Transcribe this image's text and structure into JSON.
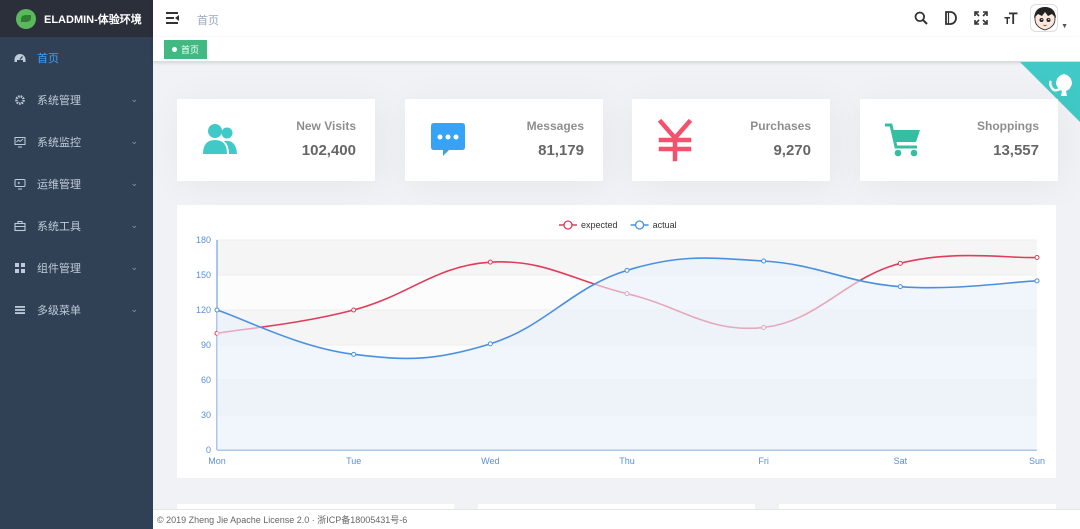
{
  "app": {
    "title": "ELADMIN-体验环境"
  },
  "sidebar": {
    "items": [
      {
        "label": "首页",
        "icon": "dashboard-icon",
        "active": true
      },
      {
        "label": "系统管理",
        "icon": "gear-icon"
      },
      {
        "label": "系统监控",
        "icon": "monitor-icon"
      },
      {
        "label": "运维管理",
        "icon": "ops-icon"
      },
      {
        "label": "系统工具",
        "icon": "tools-icon"
      },
      {
        "label": "组件管理",
        "icon": "components-icon"
      },
      {
        "label": "多级菜单",
        "icon": "menu-icon"
      }
    ]
  },
  "header": {
    "breadcrumb": "首页"
  },
  "tags": [
    {
      "label": "首页",
      "active": true
    }
  ],
  "panels": [
    {
      "label": "New Visits",
      "value": "102,400",
      "icon": "peoples-icon",
      "color": "#40c9c6"
    },
    {
      "label": "Messages",
      "value": "81,179",
      "icon": "message-icon",
      "color": "#36a3f7"
    },
    {
      "label": "Purchases",
      "value": "9,270",
      "icon": "money-icon",
      "color": "#f4516c"
    },
    {
      "label": "Shoppings",
      "value": "13,557",
      "icon": "shopping-cart-icon",
      "color": "#34bfa3"
    }
  ],
  "chart_data": {
    "type": "line",
    "categories": [
      "Mon",
      "Tue",
      "Wed",
      "Thu",
      "Fri",
      "Sat",
      "Sun"
    ],
    "series": [
      {
        "name": "expected",
        "values": [
          100,
          120,
          161,
          134,
          105,
          160,
          165
        ],
        "color": "#e03c5b"
      },
      {
        "name": "actual",
        "values": [
          120,
          82,
          91,
          154,
          162,
          140,
          145
        ],
        "color": "#4a8fe0"
      }
    ],
    "yticks": [
      0,
      30,
      60,
      90,
      120,
      150,
      180
    ],
    "ylim": [
      0,
      180
    ],
    "legend": "top-center",
    "area_fill": "actual"
  },
  "footer": {
    "text": "© 2019 Zheng Jie Apache License 2.0 · 浙ICP备18005431号-6"
  }
}
